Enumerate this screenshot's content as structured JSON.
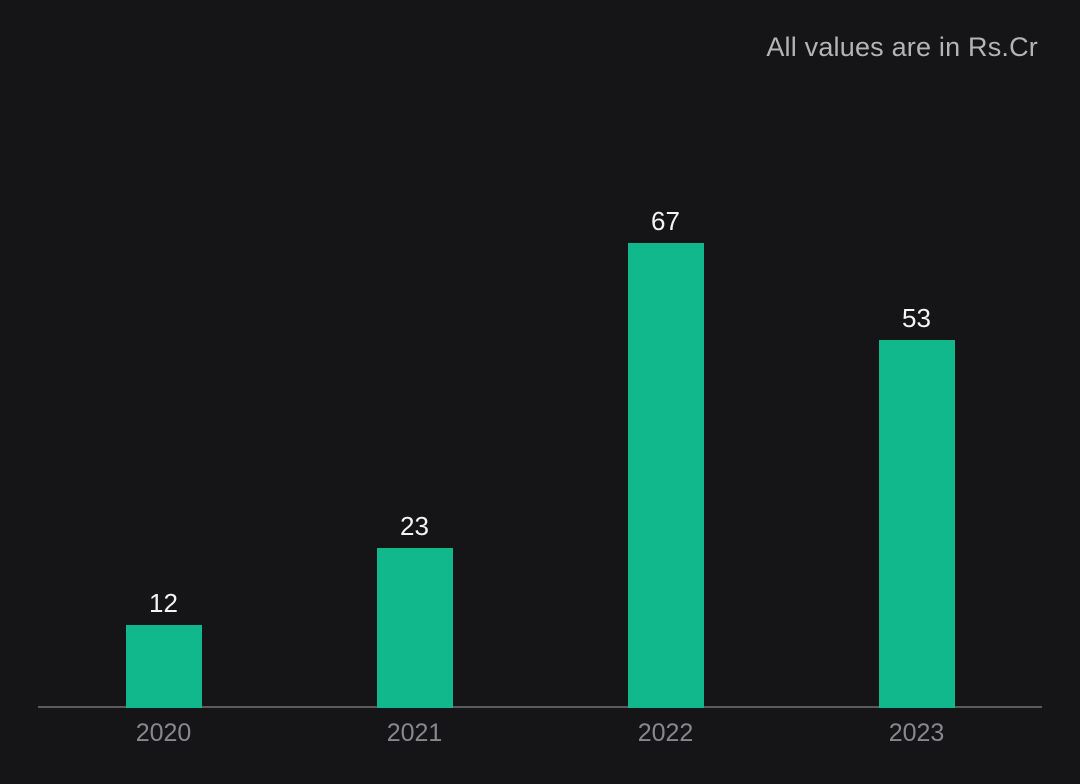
{
  "note": "All values are in Rs.Cr",
  "chart_data": {
    "type": "bar",
    "title": "",
    "xlabel": "",
    "ylabel": "",
    "categories": [
      "2020",
      "2021",
      "2022",
      "2023"
    ],
    "values": [
      12,
      23,
      67,
      53
    ],
    "ylim": [
      0,
      72
    ],
    "grid": false,
    "legend": "none",
    "value_labels_shown": true,
    "colors": {
      "background": "#151517",
      "bar": "#11b88c",
      "axis_line": "#5a5b5f",
      "tick_label": "#86888d",
      "value_label": "#f3f4f5",
      "note_text": "#b3b4b7"
    }
  }
}
